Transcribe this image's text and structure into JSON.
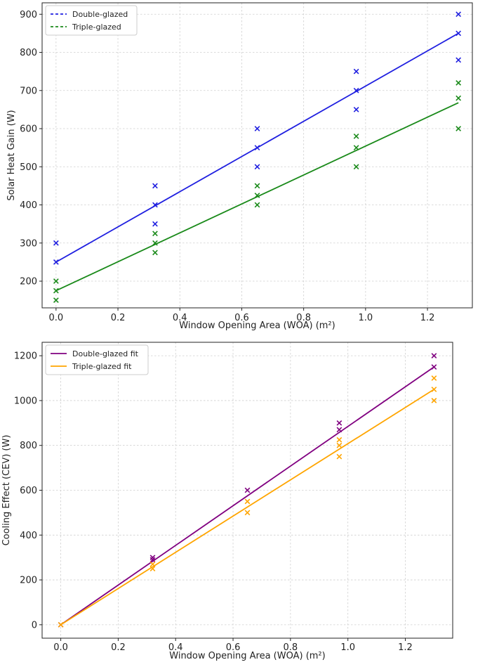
{
  "chart_data": [
    {
      "type": "scatter",
      "title": "",
      "xlabel": "Window Opening Area (WOA) (m²)",
      "ylabel": "Solar Heat Gain (W)",
      "xlim": [
        -0.045,
        1.345
      ],
      "ylim": [
        130,
        930
      ],
      "xticks": [
        0.0,
        0.2,
        0.4,
        0.6,
        0.8,
        1.0,
        1.2
      ],
      "xtick_labels": [
        "0.0",
        "0.2",
        "0.4",
        "0.6",
        "0.8",
        "1.0",
        "1.2"
      ],
      "yticks": [
        200,
        300,
        400,
        500,
        600,
        700,
        800,
        900
      ],
      "ytick_labels": [
        "200",
        "300",
        "400",
        "500",
        "600",
        "700",
        "800",
        "900"
      ],
      "grid": true,
      "legend_position": "top-left",
      "series": [
        {
          "name": "Double-glazed",
          "color": "#1f1fe0",
          "line_style": "dashed",
          "fit": {
            "x": [
              0.0,
              1.3
            ],
            "y": [
              250,
              850
            ]
          },
          "points": [
            [
              0.0,
              250
            ],
            [
              0.0,
              300
            ],
            [
              0.32,
              350
            ],
            [
              0.32,
              400
            ],
            [
              0.32,
              450
            ],
            [
              0.65,
              500
            ],
            [
              0.65,
              550
            ],
            [
              0.65,
              600
            ],
            [
              0.97,
              650
            ],
            [
              0.97,
              700
            ],
            [
              0.97,
              750
            ],
            [
              1.3,
              780
            ],
            [
              1.3,
              850
            ],
            [
              1.3,
              900
            ]
          ]
        },
        {
          "name": "Triple-glazed",
          "color": "#1a8a1a",
          "line_style": "dashed",
          "fit": {
            "x": [
              0.0,
              1.3
            ],
            "y": [
              175,
              668
            ]
          },
          "points": [
            [
              0.0,
              150
            ],
            [
              0.0,
              175
            ],
            [
              0.0,
              200
            ],
            [
              0.32,
              275
            ],
            [
              0.32,
              300
            ],
            [
              0.32,
              325
            ],
            [
              0.65,
              400
            ],
            [
              0.65,
              425
            ],
            [
              0.65,
              450
            ],
            [
              0.97,
              500
            ],
            [
              0.97,
              550
            ],
            [
              0.97,
              580
            ],
            [
              1.3,
              600
            ],
            [
              1.3,
              680
            ],
            [
              1.3,
              720
            ]
          ]
        }
      ]
    },
    {
      "type": "scatter",
      "title": "",
      "xlabel": "Window Opening Area (WOA) (m²)",
      "ylabel": "Cooling Effect (CEV) (W)",
      "xlim": [
        -0.065,
        1.365
      ],
      "ylim": [
        -60,
        1260
      ],
      "xticks": [
        0.0,
        0.2,
        0.4,
        0.6,
        0.8,
        1.0,
        1.2
      ],
      "xtick_labels": [
        "0.0",
        "0.2",
        "0.4",
        "0.6",
        "0.8",
        "1.0",
        "1.2"
      ],
      "yticks": [
        0,
        200,
        400,
        600,
        800,
        1000,
        1200
      ],
      "ytick_labels": [
        "0",
        "200",
        "400",
        "600",
        "800",
        "1000",
        "1200"
      ],
      "grid": true,
      "legend_position": "top-left",
      "series": [
        {
          "name": "Double-glazed fit",
          "color": "#800080",
          "line_style": "solid",
          "fit": {
            "x": [
              0.0,
              1.3
            ],
            "y": [
              0,
              1150
            ]
          },
          "points": [
            [
              0.0,
              0
            ],
            [
              0.32,
              290
            ],
            [
              0.32,
              300
            ],
            [
              0.65,
              600
            ],
            [
              0.97,
              870
            ],
            [
              0.97,
              900
            ],
            [
              1.3,
              1150
            ],
            [
              1.3,
              1200
            ]
          ]
        },
        {
          "name": "Triple-glazed fit",
          "color": "#ffa500",
          "line_style": "solid",
          "fit": {
            "x": [
              0.0,
              1.3
            ],
            "y": [
              0,
              1050
            ]
          },
          "points": [
            [
              0.0,
              0
            ],
            [
              0.32,
              250
            ],
            [
              0.32,
              270
            ],
            [
              0.65,
              500
            ],
            [
              0.65,
              550
            ],
            [
              0.97,
              750
            ],
            [
              0.97,
              800
            ],
            [
              0.97,
              825
            ],
            [
              1.3,
              1000
            ],
            [
              1.3,
              1050
            ],
            [
              1.3,
              1100
            ]
          ]
        }
      ]
    }
  ]
}
